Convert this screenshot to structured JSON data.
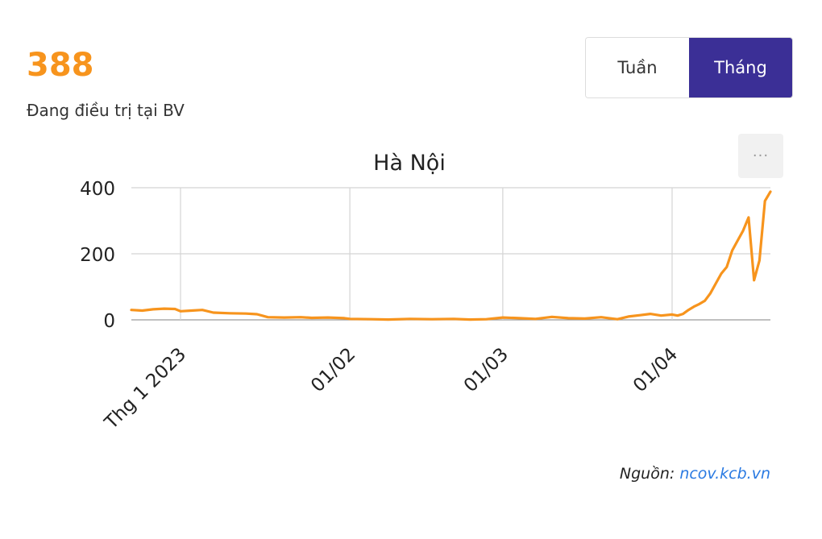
{
  "stat": {
    "value": "388",
    "label": "Đang điều trị tại BV"
  },
  "toggle": {
    "week_label": "Tuần",
    "month_label": "Tháng",
    "selected": "Tháng"
  },
  "menu": {
    "label": "···"
  },
  "source": {
    "prefix": "Nguồn:",
    "link_text": "ncov.kcb.vn"
  },
  "colors": {
    "accent": "#f7941d",
    "toggle_active": "#3b2f96",
    "link": "#2a7ae2"
  },
  "chart_data": {
    "type": "line",
    "title": "Hà Nội",
    "xlabel": "",
    "ylabel": "",
    "ylim": [
      0,
      400
    ],
    "yticks": [
      0,
      200,
      400
    ],
    "x_ticks": [
      {
        "date": "2023-01-01",
        "label": "Thg 1 2023"
      },
      {
        "date": "2023-02-01",
        "label": "01/02"
      },
      {
        "date": "2023-03-01",
        "label": "01/03"
      },
      {
        "date": "2023-04-01",
        "label": "01/04"
      }
    ],
    "xlim": [
      "2022-12-23",
      "2023-04-19"
    ],
    "grid": true,
    "series": [
      {
        "color": "#f7941d",
        "points": [
          [
            "2022-12-23",
            30
          ],
          [
            "2022-12-25",
            28
          ],
          [
            "2022-12-27",
            32
          ],
          [
            "2022-12-29",
            34
          ],
          [
            "2022-12-31",
            33
          ],
          [
            "2023-01-01",
            26
          ],
          [
            "2023-01-03",
            28
          ],
          [
            "2023-01-05",
            30
          ],
          [
            "2023-01-07",
            22
          ],
          [
            "2023-01-10",
            20
          ],
          [
            "2023-01-13",
            19
          ],
          [
            "2023-01-15",
            17
          ],
          [
            "2023-01-17",
            8
          ],
          [
            "2023-01-20",
            7
          ],
          [
            "2023-01-23",
            8
          ],
          [
            "2023-01-25",
            6
          ],
          [
            "2023-01-28",
            7
          ],
          [
            "2023-01-31",
            5
          ],
          [
            "2023-02-01",
            3
          ],
          [
            "2023-02-05",
            2
          ],
          [
            "2023-02-08",
            1
          ],
          [
            "2023-02-12",
            3
          ],
          [
            "2023-02-16",
            2
          ],
          [
            "2023-02-20",
            3
          ],
          [
            "2023-02-23",
            1
          ],
          [
            "2023-02-26",
            2
          ],
          [
            "2023-03-01",
            7
          ],
          [
            "2023-03-04",
            5
          ],
          [
            "2023-03-07",
            3
          ],
          [
            "2023-03-10",
            9
          ],
          [
            "2023-03-13",
            5
          ],
          [
            "2023-03-16",
            4
          ],
          [
            "2023-03-19",
            8
          ],
          [
            "2023-03-22",
            2
          ],
          [
            "2023-03-24",
            10
          ],
          [
            "2023-03-26",
            14
          ],
          [
            "2023-03-28",
            18
          ],
          [
            "2023-03-30",
            13
          ],
          [
            "2023-04-01",
            16
          ],
          [
            "2023-04-02",
            13
          ],
          [
            "2023-04-03",
            18
          ],
          [
            "2023-04-04",
            30
          ],
          [
            "2023-04-05",
            40
          ],
          [
            "2023-04-06",
            48
          ],
          [
            "2023-04-07",
            58
          ],
          [
            "2023-04-08",
            80
          ],
          [
            "2023-04-09",
            110
          ],
          [
            "2023-04-10",
            140
          ],
          [
            "2023-04-11",
            160
          ],
          [
            "2023-04-12",
            210
          ],
          [
            "2023-04-13",
            240
          ],
          [
            "2023-04-14",
            270
          ],
          [
            "2023-04-15",
            310
          ],
          [
            "2023-04-16",
            120
          ],
          [
            "2023-04-17",
            180
          ],
          [
            "2023-04-18",
            360
          ],
          [
            "2023-04-19",
            388
          ]
        ]
      }
    ]
  }
}
